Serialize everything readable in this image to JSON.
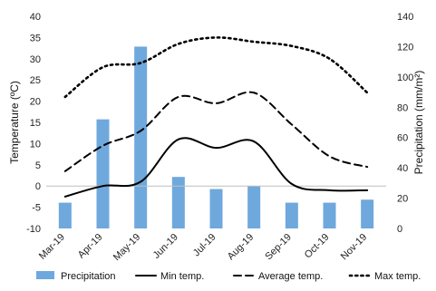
{
  "chart_data": {
    "type": "bar+line",
    "categories": [
      "Mar-19",
      "Apr-19",
      "May-19",
      "Jun-19",
      "Jul-19",
      "Aug-19",
      "Sep-19",
      "Oct-19",
      "Nov-19"
    ],
    "left_axis": {
      "label": "Temperature (ºC)",
      "ylim": [
        -10,
        40
      ],
      "ticks": [
        -10,
        -5,
        0,
        5,
        10,
        15,
        20,
        25,
        30,
        35,
        40
      ]
    },
    "right_axis": {
      "label": "Precipitation (mm/m²)",
      "ylim": [
        0,
        140
      ],
      "ticks": [
        0,
        20,
        40,
        60,
        80,
        100,
        120,
        140
      ]
    },
    "series": [
      {
        "name": "Precipitation",
        "type": "bar",
        "axis": "right",
        "color": "#6fa8dc",
        "values": [
          17,
          72,
          120,
          34,
          26,
          28,
          17,
          17,
          19
        ]
      },
      {
        "name": "Min temp.",
        "type": "line",
        "style": "solid",
        "axis": "left",
        "color": "#000000",
        "values": [
          -2.5,
          0,
          1,
          11,
          9,
          10.5,
          0.5,
          -1,
          -1
        ]
      },
      {
        "name": "Average temp.",
        "type": "line",
        "style": "dashed",
        "axis": "left",
        "color": "#000000",
        "values": [
          3.5,
          9.5,
          13,
          21,
          19.5,
          22,
          14.5,
          7,
          4.5
        ]
      },
      {
        "name": "Max temp.",
        "type": "line",
        "style": "dotted",
        "axis": "left",
        "color": "#000000",
        "values": [
          21,
          28,
          29,
          33.5,
          35,
          34,
          33,
          30,
          22
        ]
      }
    ],
    "legend_position": "bottom",
    "grid": false
  }
}
